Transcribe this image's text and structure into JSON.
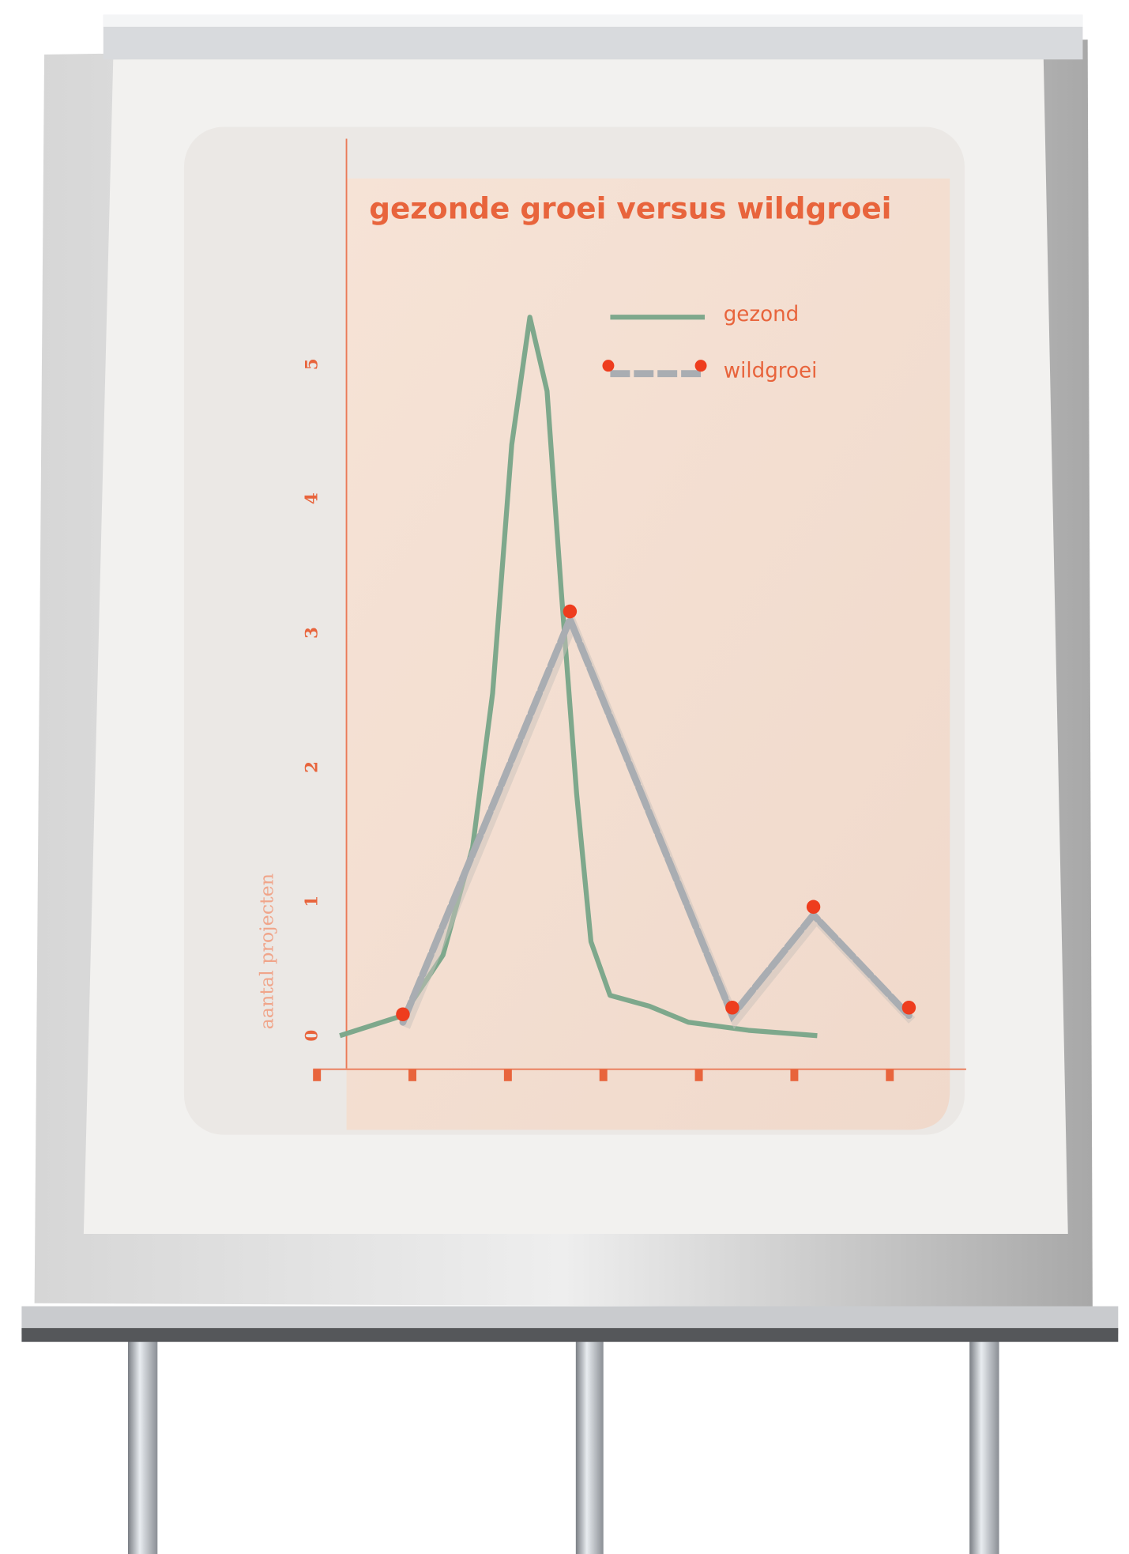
{
  "chart_data": {
    "type": "line",
    "title": "gezonde groei versus wildgroei",
    "ylabel": "aantal projecten",
    "xlim": [
      -0.04,
      6.8
    ],
    "xticks": [
      0,
      1,
      2,
      3,
      4,
      5,
      6
    ],
    "ylim": [
      -0.25,
      6.7
    ],
    "yticks": [
      0,
      1,
      2,
      3,
      4,
      5
    ],
    "series": [
      {
        "name": "gezond",
        "color": "#7ea88c",
        "x": [
          0.24,
          0.9,
          1.32,
          1.63,
          1.84,
          2.04,
          2.23,
          2.41,
          2.56,
          2.72,
          2.87,
          3.07,
          3.48,
          3.89,
          4.52,
          5.24
        ],
        "values": [
          0,
          0.15,
          0.6,
          1.4,
          2.55,
          4.4,
          5.35,
          4.8,
          3.3,
          1.8,
          0.7,
          0.3,
          0.22,
          0.1,
          0.04,
          0
        ]
      },
      {
        "name": "wildgroei",
        "color": "#a9adb2",
        "x": [
          0.9,
          2.65,
          4.35,
          5.2,
          6.2
        ],
        "values": [
          0.1,
          3.1,
          0.15,
          0.9,
          0.15
        ]
      }
    ]
  }
}
